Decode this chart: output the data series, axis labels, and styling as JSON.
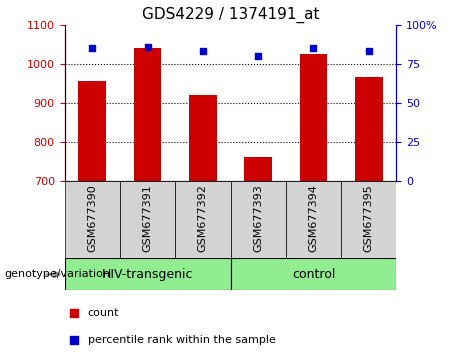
{
  "title": "GDS4229 / 1374191_at",
  "samples": [
    "GSM677390",
    "GSM677391",
    "GSM677392",
    "GSM677393",
    "GSM677394",
    "GSM677395"
  ],
  "count_values": [
    955,
    1040,
    920,
    760,
    1025,
    965
  ],
  "percentile_values": [
    85,
    86,
    83,
    80,
    85,
    83
  ],
  "left_ylim": [
    700,
    1100
  ],
  "right_ylim": [
    0,
    100
  ],
  "left_yticks": [
    700,
    800,
    900,
    1000,
    1100
  ],
  "right_yticks": [
    0,
    25,
    50,
    75,
    100
  ],
  "right_yticklabels": [
    "0",
    "25",
    "50",
    "75",
    "100%"
  ],
  "grid_values": [
    800,
    900,
    1000
  ],
  "bar_color": "#cc0000",
  "dot_color": "#0000cc",
  "bar_width": 0.5,
  "groups": [
    {
      "label": "HIV-transgenic",
      "indices": [
        0,
        1,
        2
      ],
      "color": "#90ee90"
    },
    {
      "label": "control",
      "indices": [
        3,
        4,
        5
      ],
      "color": "#90ee90"
    }
  ],
  "group_label_prefix": "genotype/variation",
  "legend_count_label": "count",
  "legend_percentile_label": "percentile rank within the sample",
  "left_axis_color": "#cc0000",
  "right_axis_color": "#0000cc",
  "title_fontsize": 11,
  "tick_fontsize": 8,
  "legend_fontsize": 8,
  "xtick_bg_color": "#d3d3d3"
}
